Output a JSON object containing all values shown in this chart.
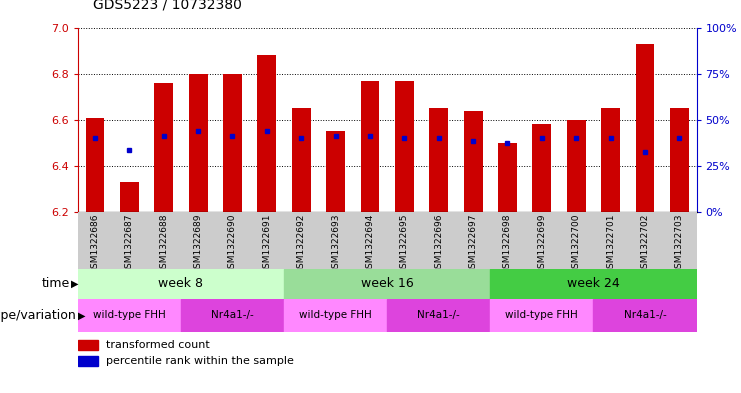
{
  "title": "GDS5223 / 10732380",
  "samples": [
    "GSM1322686",
    "GSM1322687",
    "GSM1322688",
    "GSM1322689",
    "GSM1322690",
    "GSM1322691",
    "GSM1322692",
    "GSM1322693",
    "GSM1322694",
    "GSM1322695",
    "GSM1322696",
    "GSM1322697",
    "GSM1322698",
    "GSM1322699",
    "GSM1322700",
    "GSM1322701",
    "GSM1322702",
    "GSM1322703"
  ],
  "red_values": [
    6.61,
    6.33,
    6.76,
    6.8,
    6.8,
    6.88,
    6.65,
    6.55,
    6.77,
    6.77,
    6.65,
    6.64,
    6.5,
    6.58,
    6.6,
    6.65,
    6.93,
    6.65
  ],
  "blue_values": [
    6.52,
    6.47,
    6.53,
    6.55,
    6.53,
    6.55,
    6.52,
    6.53,
    6.53,
    6.52,
    6.52,
    6.51,
    6.5,
    6.52,
    6.52,
    6.52,
    6.46,
    6.52
  ],
  "y_min": 6.2,
  "y_max": 7.0,
  "y_ticks_left": [
    6.2,
    6.4,
    6.6,
    6.8,
    7.0
  ],
  "y_ticks_right": [
    0,
    25,
    50,
    75,
    100
  ],
  "bar_color": "#cc0000",
  "dot_color": "#0000cc",
  "bar_bottom": 6.2,
  "week8_color": "#ccffcc",
  "week16_color": "#99dd99",
  "week24_color": "#44cc44",
  "wt_color": "#ff88ff",
  "nr4_color": "#dd44dd",
  "sample_row_color": "#cccccc",
  "week8_label": "week 8",
  "week16_label": "week 16",
  "week24_label": "week 24",
  "wt_label": "wild-type FHH",
  "nr4_label": "Nr4a1-/-",
  "time_label": "time",
  "genotype_label": "genotype/variation",
  "legend_red": "transformed count",
  "legend_blue": "percentile rank within the sample"
}
